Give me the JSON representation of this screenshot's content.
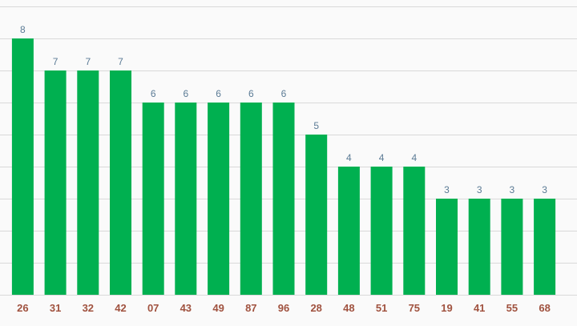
{
  "chart_data": {
    "type": "bar",
    "title": "",
    "xlabel": "",
    "ylabel": "",
    "categories": [
      "26",
      "31",
      "32",
      "42",
      "07",
      "43",
      "49",
      "87",
      "96",
      "28",
      "48",
      "51",
      "75",
      "19",
      "41",
      "55",
      "68"
    ],
    "values": [
      8,
      7,
      7,
      7,
      6,
      6,
      6,
      6,
      6,
      5,
      4,
      4,
      4,
      3,
      3,
      3,
      3
    ],
    "ylim": [
      0,
      9
    ],
    "grid": true,
    "legend": "none",
    "colors": {
      "bar": "#00b050",
      "data_label": "#5b7b95",
      "category_label": "#a0523f",
      "grid": "#d9d9d9"
    }
  }
}
